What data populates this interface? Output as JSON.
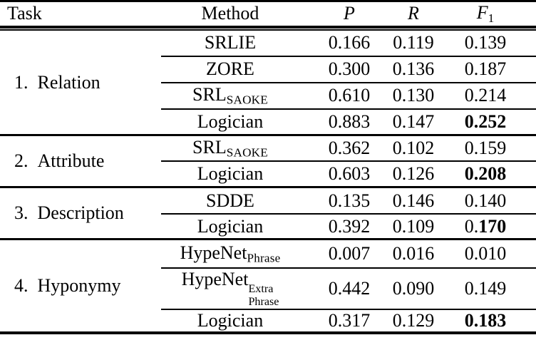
{
  "header": {
    "task": "Task",
    "method": "Method",
    "p": "P",
    "r": "R",
    "f1_base": "F",
    "f1_sub": "1"
  },
  "tasks": [
    {
      "num": "1.",
      "name": "Relation",
      "rows": [
        {
          "method": "SRLIE",
          "p": "0.166",
          "r": "0.119",
          "f1_plain": "0.139",
          "f1_bold": ""
        },
        {
          "method": "ZORE",
          "p": "0.300",
          "r": "0.136",
          "f1_plain": "0.187",
          "f1_bold": ""
        },
        {
          "method": "SRL",
          "method_sub": "SAOKE",
          "p": "0.610",
          "r": "0.130",
          "f1_plain": "0.214",
          "f1_bold": ""
        },
        {
          "method": "Logician",
          "p": "0.883",
          "r": "0.147",
          "f1_plain": "",
          "f1_bold": "0.252"
        }
      ]
    },
    {
      "num": "2.",
      "name": "Attribute",
      "rows": [
        {
          "method": "SRL",
          "method_sub": "SAOKE",
          "p": "0.362",
          "r": "0.102",
          "f1_plain": "0.159",
          "f1_bold": ""
        },
        {
          "method": "Logician",
          "p": "0.603",
          "r": "0.126",
          "f1_plain": "",
          "f1_bold": "0.208"
        }
      ]
    },
    {
      "num": "3.",
      "name": "Description",
      "rows": [
        {
          "method": "SDDE",
          "p": "0.135",
          "r": "0.146",
          "f1_plain": "0.140",
          "f1_bold": ""
        },
        {
          "method": "Logician",
          "p": "0.392",
          "r": "0.109",
          "f1_plain": "0.",
          "f1_bold": "170"
        }
      ]
    },
    {
      "num": "4.",
      "name": "Hyponymy",
      "rows": [
        {
          "method": "HypeNet",
          "method_sub": "Phrase",
          "p": "0.007",
          "r": "0.016",
          "f1_plain": "0.010",
          "f1_bold": ""
        },
        {
          "method": "HypeNet",
          "method_sup_stack": "Extra",
          "method_sub_stack": "Phrase",
          "p": "0.442",
          "r": "0.090",
          "f1_plain": "0.149",
          "f1_bold": ""
        },
        {
          "method": "Logician",
          "p": "0.317",
          "r": "0.129",
          "f1_plain": "",
          "f1_bold": "0.183"
        }
      ]
    }
  ]
}
